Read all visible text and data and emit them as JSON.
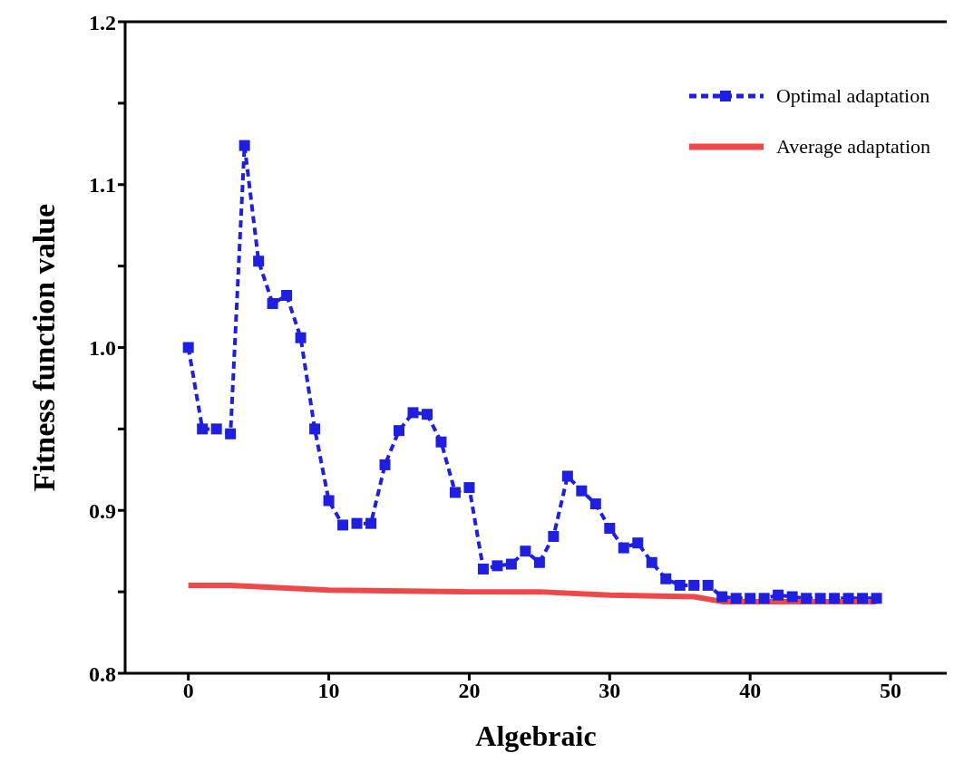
{
  "chart_data": {
    "type": "line",
    "xlabel": "Algebraic",
    "ylabel": "Fitness function value",
    "xlim": [
      -4.5,
      54
    ],
    "xticks": [
      0,
      10,
      20,
      30,
      40,
      50
    ],
    "ylim": [
      0.8,
      1.2
    ],
    "yticks": [
      {
        "value": 0.8,
        "label": "0.8"
      },
      {
        "value": 0.85,
        "label": null
      },
      {
        "value": 0.9,
        "label": "0.9"
      },
      {
        "value": 0.95,
        "label": null
      },
      {
        "value": 1.0,
        "label": "1.0"
      },
      {
        "value": 1.05,
        "label": null
      },
      {
        "value": 1.1,
        "label": "1.1"
      },
      {
        "value": 1.15,
        "label": null
      },
      {
        "value": 1.2,
        "label": "1.2"
      }
    ],
    "grid": false,
    "legend": "top right",
    "series": [
      {
        "name": "Optimal adaptation",
        "color": "#1f1fe0",
        "marker": "square",
        "line_style": "dashed",
        "x": [
          0,
          1,
          2,
          3,
          4,
          5,
          6,
          7,
          8,
          9,
          10,
          11,
          12,
          13,
          14,
          15,
          16,
          17,
          18,
          19,
          20,
          21,
          22,
          23,
          24,
          25,
          26,
          27,
          28,
          29,
          30,
          31,
          32,
          33,
          34,
          35,
          36,
          37,
          38,
          39,
          40,
          41,
          42,
          43,
          44,
          45,
          46,
          47,
          48,
          49
        ],
        "values": [
          1.0,
          0.95,
          0.95,
          0.947,
          1.124,
          1.053,
          1.027,
          1.032,
          1.006,
          0.95,
          0.906,
          0.891,
          0.892,
          0.892,
          0.928,
          0.949,
          0.96,
          0.959,
          0.942,
          0.911,
          0.914,
          0.864,
          0.866,
          0.867,
          0.875,
          0.868,
          0.884,
          0.921,
          0.912,
          0.904,
          0.889,
          0.877,
          0.88,
          0.868,
          0.858,
          0.854,
          0.854,
          0.854,
          0.847,
          0.846,
          0.846,
          0.846,
          0.848,
          0.847,
          0.846,
          0.846,
          0.846,
          0.846,
          0.846,
          0.846
        ]
      },
      {
        "name": "Average adaptation",
        "color": "#f04848",
        "marker": "none",
        "line_style": "solid",
        "x": [
          0,
          3,
          10,
          20,
          25,
          30,
          36,
          38,
          49
        ],
        "values": [
          0.854,
          0.854,
          0.851,
          0.85,
          0.85,
          0.848,
          0.847,
          0.844,
          0.844
        ]
      }
    ]
  }
}
